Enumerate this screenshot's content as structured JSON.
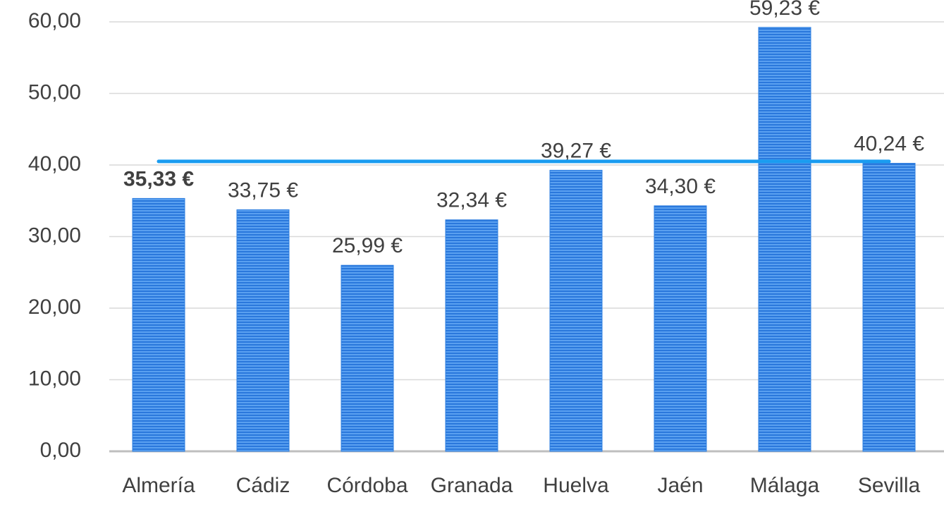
{
  "chart_data": {
    "type": "bar",
    "categories": [
      "Almería",
      "Cádiz",
      "Córdoba",
      "Granada",
      "Huelva",
      "Jaén",
      "Málaga",
      "Sevilla"
    ],
    "series": [
      {
        "type": "bar",
        "color": "#2f7fe0",
        "values": [
          35.33,
          33.75,
          25.99,
          32.34,
          39.27,
          34.3,
          59.23,
          40.24
        ],
        "value_labels": [
          "35,33 €",
          "33,75 €",
          "25,99 €",
          "32,34 €",
          "39,27 €",
          "34,30 €",
          "59,23 €",
          "40,24 €"
        ]
      },
      {
        "type": "line",
        "color": "#1a9cf0",
        "values": [
          40.5,
          40.5,
          40.5,
          40.5,
          40.5,
          40.5,
          40.5,
          40.5
        ]
      }
    ],
    "ylim": [
      0,
      60
    ],
    "yticks": [
      {
        "value": 0,
        "label": "0,00"
      },
      {
        "value": 10,
        "label": "10,00"
      },
      {
        "value": 20,
        "label": "20,00"
      },
      {
        "value": 30,
        "label": "30,00"
      },
      {
        "value": 40,
        "label": "40,00"
      },
      {
        "value": 50,
        "label": "50,00"
      },
      {
        "value": 60,
        "label": "60,00"
      }
    ],
    "grid": true
  }
}
